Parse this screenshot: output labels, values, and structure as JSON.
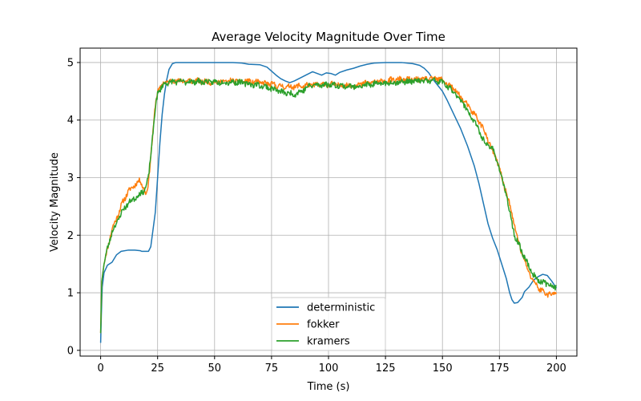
{
  "chart_data": {
    "type": "line",
    "title": "Average Velocity Magnitude Over Time",
    "xlabel": "Time (s)",
    "ylabel": "Velocity Magnitude",
    "xlim": [
      -9,
      209
    ],
    "ylim": [
      -0.1,
      5.25
    ],
    "xticks": [
      0,
      25,
      50,
      75,
      100,
      125,
      150,
      175,
      200
    ],
    "yticks": [
      0,
      1,
      2,
      3,
      4,
      5
    ],
    "grid": true,
    "legend_position": "lower-center",
    "series": [
      {
        "name": "deterministic",
        "color": "#1f77b4",
        "noise": 0,
        "points": [
          [
            0,
            0.13
          ],
          [
            0.3,
            0.6
          ],
          [
            0.7,
            1.1
          ],
          [
            1.5,
            1.35
          ],
          [
            3,
            1.48
          ],
          [
            5,
            1.53
          ],
          [
            7,
            1.66
          ],
          [
            9,
            1.72
          ],
          [
            12,
            1.74
          ],
          [
            15,
            1.74
          ],
          [
            17.5,
            1.73
          ],
          [
            18,
            1.72
          ],
          [
            21,
            1.72
          ],
          [
            22,
            1.8
          ],
          [
            24,
            2.4
          ],
          [
            25,
            3.0
          ],
          [
            26,
            3.6
          ],
          [
            27,
            4.1
          ],
          [
            28,
            4.45
          ],
          [
            29,
            4.7
          ],
          [
            30,
            4.88
          ],
          [
            31.5,
            4.98
          ],
          [
            33,
            5.0
          ],
          [
            45,
            5.0
          ],
          [
            58,
            5.0
          ],
          [
            62,
            4.99
          ],
          [
            65,
            4.97
          ],
          [
            70,
            4.96
          ],
          [
            73,
            4.92
          ],
          [
            75,
            4.85
          ],
          [
            77,
            4.78
          ],
          [
            79,
            4.72
          ],
          [
            81,
            4.68
          ],
          [
            83,
            4.65
          ],
          [
            85,
            4.68
          ],
          [
            87,
            4.72
          ],
          [
            89,
            4.76
          ],
          [
            91,
            4.8
          ],
          [
            93,
            4.84
          ],
          [
            95,
            4.81
          ],
          [
            97,
            4.78
          ],
          [
            99,
            4.82
          ],
          [
            101,
            4.81
          ],
          [
            103,
            4.78
          ],
          [
            105,
            4.83
          ],
          [
            108,
            4.87
          ],
          [
            111,
            4.9
          ],
          [
            114,
            4.94
          ],
          [
            117,
            4.97
          ],
          [
            120,
            4.99
          ],
          [
            125,
            5.0
          ],
          [
            132,
            5.0
          ],
          [
            137,
            4.98
          ],
          [
            140,
            4.95
          ],
          [
            142,
            4.9
          ],
          [
            144,
            4.82
          ],
          [
            146,
            4.7
          ],
          [
            148,
            4.6
          ],
          [
            150,
            4.5
          ],
          [
            152,
            4.35
          ],
          [
            155,
            4.1
          ],
          [
            158,
            3.85
          ],
          [
            161,
            3.55
          ],
          [
            164,
            3.2
          ],
          [
            166,
            2.9
          ],
          [
            168,
            2.55
          ],
          [
            170,
            2.2
          ],
          [
            172,
            1.95
          ],
          [
            174,
            1.75
          ],
          [
            176,
            1.5
          ],
          [
            178,
            1.25
          ],
          [
            179.5,
            1.0
          ],
          [
            180.5,
            0.88
          ],
          [
            181.5,
            0.82
          ],
          [
            183,
            0.83
          ],
          [
            185,
            0.92
          ],
          [
            186,
            1.02
          ],
          [
            188,
            1.1
          ],
          [
            190,
            1.22
          ],
          [
            192,
            1.28
          ],
          [
            194,
            1.32
          ],
          [
            196,
            1.3
          ],
          [
            198,
            1.2
          ],
          [
            200,
            1.08
          ]
        ]
      },
      {
        "name": "fokker",
        "color": "#ff7f0e",
        "noise": 0.045,
        "seed": 11,
        "points": [
          [
            0,
            0.3
          ],
          [
            0.5,
            1.2
          ],
          [
            1.5,
            1.5
          ],
          [
            3,
            1.78
          ],
          [
            5,
            2.1
          ],
          [
            8,
            2.4
          ],
          [
            10,
            2.6
          ],
          [
            12,
            2.75
          ],
          [
            15,
            2.88
          ],
          [
            17.5,
            2.95
          ],
          [
            19,
            2.8
          ],
          [
            20,
            2.7
          ],
          [
            21,
            2.9
          ],
          [
            22,
            3.4
          ],
          [
            23,
            3.8
          ],
          [
            24,
            4.25
          ],
          [
            25,
            4.5
          ],
          [
            27,
            4.62
          ],
          [
            30,
            4.68
          ],
          [
            40,
            4.68
          ],
          [
            50,
            4.66
          ],
          [
            60,
            4.68
          ],
          [
            68,
            4.66
          ],
          [
            75,
            4.62
          ],
          [
            80,
            4.58
          ],
          [
            85,
            4.58
          ],
          [
            90,
            4.6
          ],
          [
            100,
            4.62
          ],
          [
            110,
            4.6
          ],
          [
            120,
            4.66
          ],
          [
            130,
            4.7
          ],
          [
            140,
            4.7
          ],
          [
            147,
            4.72
          ],
          [
            150,
            4.7
          ],
          [
            153,
            4.6
          ],
          [
            156,
            4.5
          ],
          [
            159,
            4.35
          ],
          [
            162,
            4.2
          ],
          [
            165,
            4.05
          ],
          [
            168,
            3.85
          ],
          [
            170,
            3.65
          ],
          [
            172,
            3.45
          ],
          [
            174,
            3.3
          ],
          [
            176,
            3.0
          ],
          [
            178,
            2.75
          ],
          [
            180,
            2.45
          ],
          [
            182,
            2.1
          ],
          [
            184,
            1.8
          ],
          [
            186,
            1.55
          ],
          [
            188,
            1.35
          ],
          [
            190,
            1.2
          ],
          [
            193,
            1.05
          ],
          [
            196,
            0.98
          ],
          [
            198,
            0.97
          ],
          [
            200,
            1.0
          ]
        ]
      },
      {
        "name": "kramers",
        "color": "#2ca02c",
        "noise": 0.045,
        "seed": 23,
        "points": [
          [
            0,
            0.3
          ],
          [
            0.5,
            1.2
          ],
          [
            1.5,
            1.5
          ],
          [
            3,
            1.78
          ],
          [
            5,
            2.05
          ],
          [
            8,
            2.3
          ],
          [
            10,
            2.45
          ],
          [
            12,
            2.55
          ],
          [
            15,
            2.65
          ],
          [
            17.5,
            2.72
          ],
          [
            19,
            2.78
          ],
          [
            20,
            2.85
          ],
          [
            21,
            3.0
          ],
          [
            22,
            3.4
          ],
          [
            23,
            3.8
          ],
          [
            24,
            4.2
          ],
          [
            25,
            4.45
          ],
          [
            27,
            4.6
          ],
          [
            30,
            4.66
          ],
          [
            40,
            4.67
          ],
          [
            50,
            4.66
          ],
          [
            60,
            4.66
          ],
          [
            70,
            4.6
          ],
          [
            75,
            4.55
          ],
          [
            80,
            4.48
          ],
          [
            85,
            4.45
          ],
          [
            88,
            4.5
          ],
          [
            92,
            4.6
          ],
          [
            100,
            4.62
          ],
          [
            110,
            4.58
          ],
          [
            120,
            4.62
          ],
          [
            130,
            4.66
          ],
          [
            140,
            4.68
          ],
          [
            147,
            4.68
          ],
          [
            150,
            4.66
          ],
          [
            153,
            4.55
          ],
          [
            156,
            4.45
          ],
          [
            159,
            4.3
          ],
          [
            162,
            4.1
          ],
          [
            165,
            3.9
          ],
          [
            168,
            3.65
          ],
          [
            170,
            3.55
          ],
          [
            172,
            3.5
          ],
          [
            174,
            3.3
          ],
          [
            176,
            3.0
          ],
          [
            178,
            2.7
          ],
          [
            180,
            2.3
          ],
          [
            182,
            1.95
          ],
          [
            184,
            1.8
          ],
          [
            186,
            1.62
          ],
          [
            188,
            1.45
          ],
          [
            190,
            1.3
          ],
          [
            193,
            1.2
          ],
          [
            196,
            1.15
          ],
          [
            198,
            1.12
          ],
          [
            200,
            1.1
          ]
        ]
      }
    ]
  }
}
